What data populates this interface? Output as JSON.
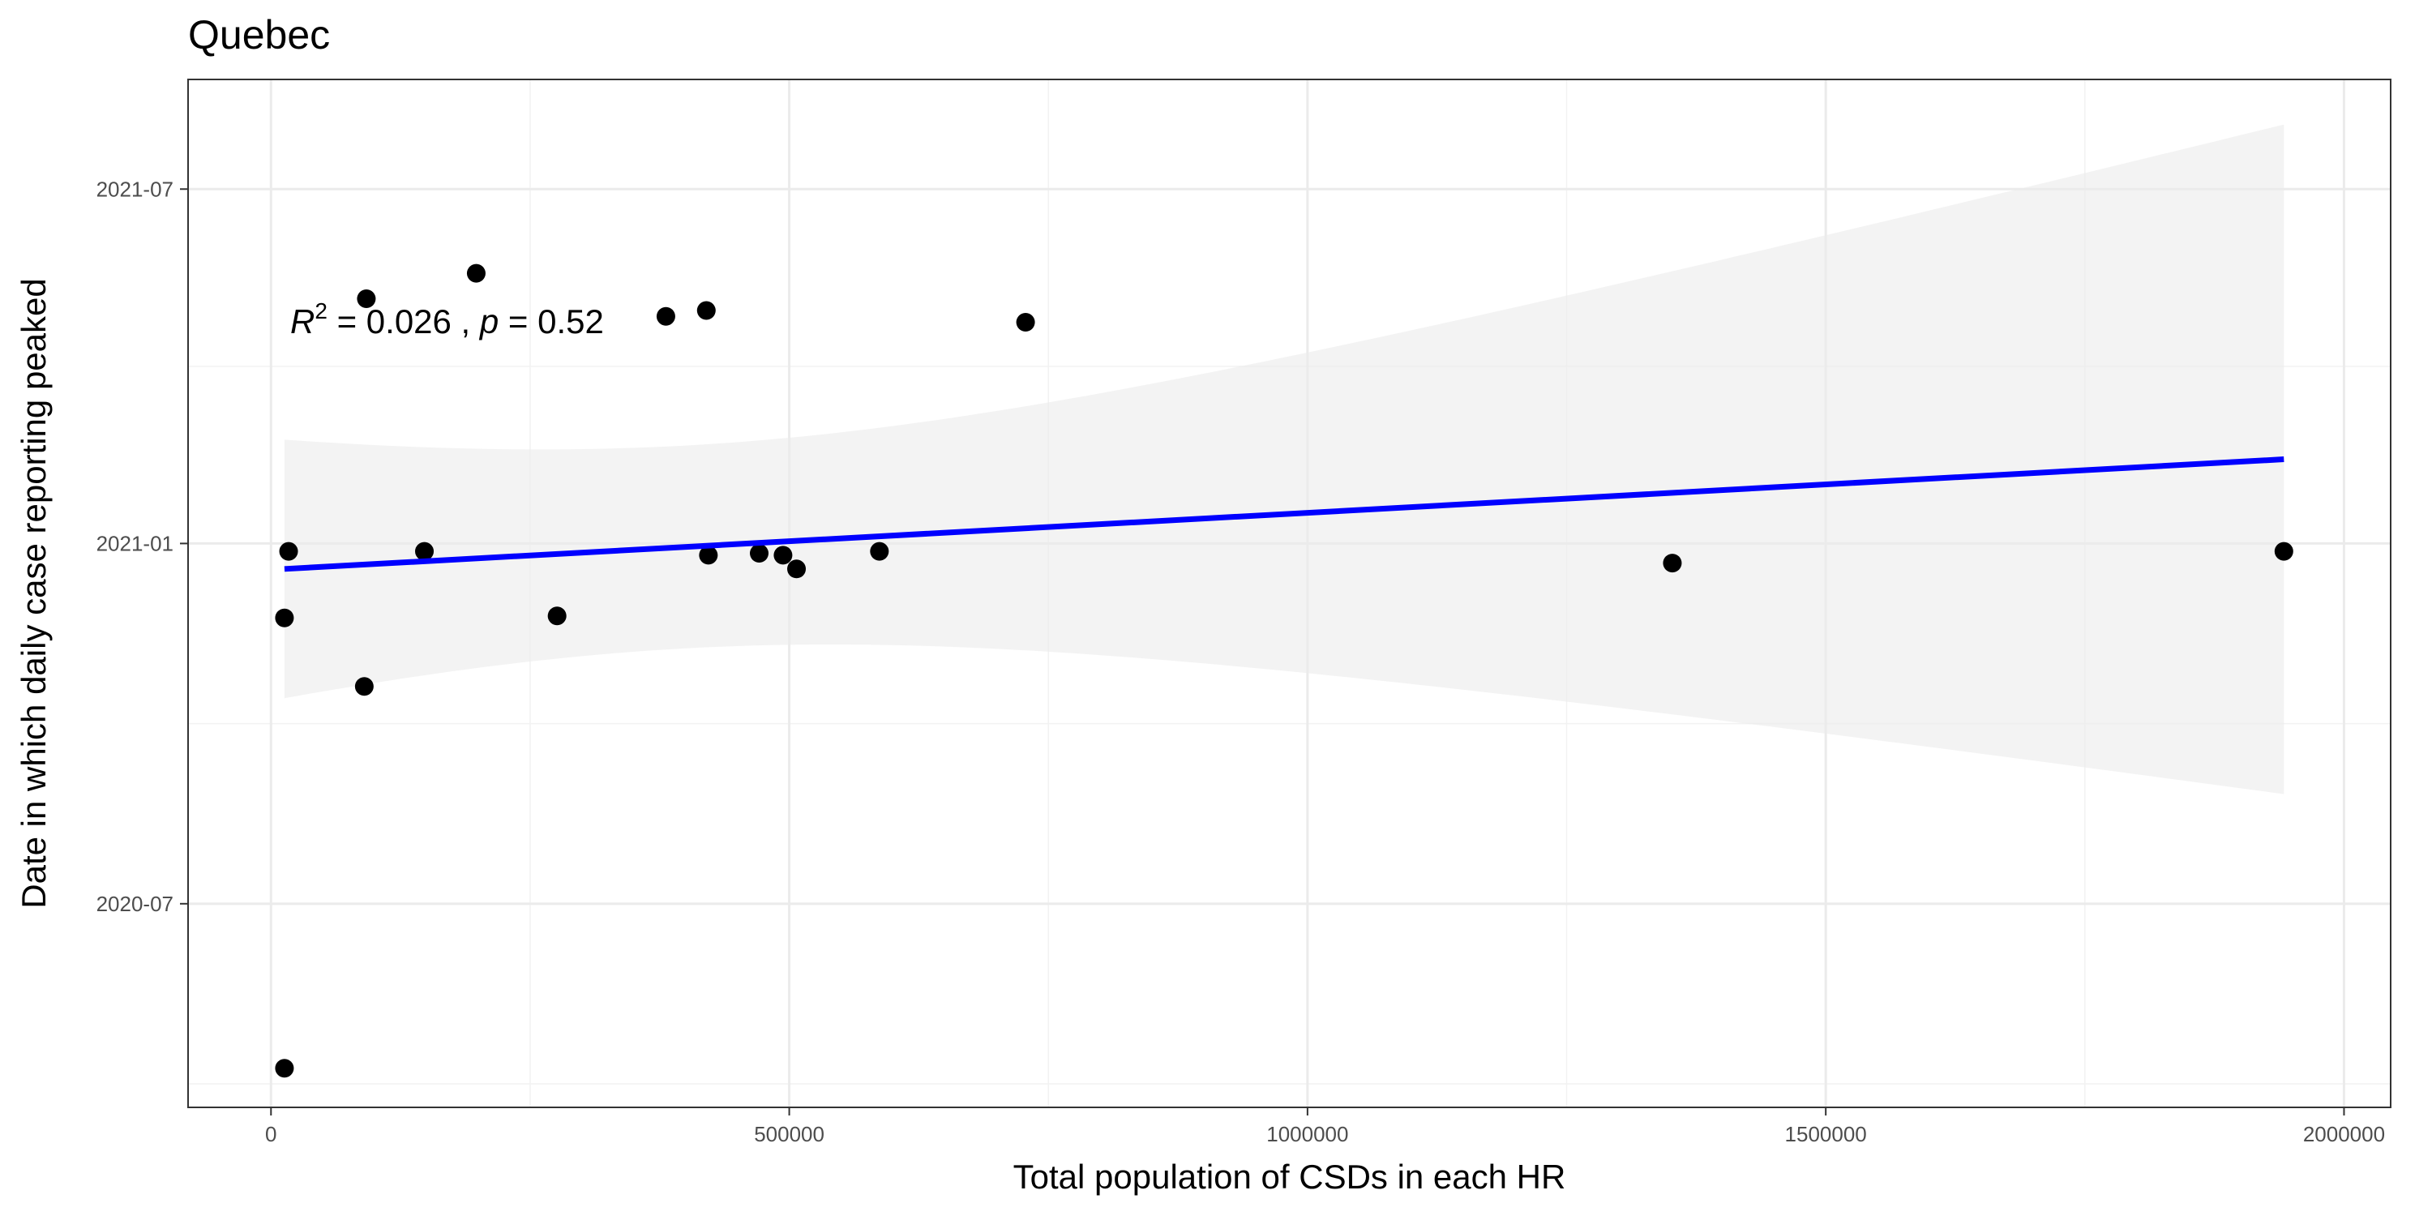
{
  "chart_data": {
    "type": "scatter",
    "title": "Quebec",
    "xlabel": "Total population of CSDs in each HR",
    "ylabel": "Date in which daily case reporting peaked",
    "xlim": [
      -80000,
      2045000
    ],
    "ylim": [
      "2020-03-19",
      "2021-08-26"
    ],
    "x_ticks": [
      0,
      500000,
      1000000,
      1500000,
      2000000
    ],
    "x_tick_labels": [
      "0",
      "500000",
      "1000000",
      "1500000",
      "2000000"
    ],
    "y_ticks": [
      "2020-07-01",
      "2021-01-01",
      "2021-07-01"
    ],
    "y_tick_labels": [
      "2020-07",
      "2021-01",
      "2021-07"
    ],
    "grid": true,
    "points": [
      {
        "x": 13000,
        "y": "2020-04-08"
      },
      {
        "x": 13000,
        "y": "2020-11-24"
      },
      {
        "x": 17000,
        "y": "2020-12-28"
      },
      {
        "x": 90000,
        "y": "2020-10-20"
      },
      {
        "x": 92000,
        "y": "2021-05-06"
      },
      {
        "x": 148000,
        "y": "2020-12-28"
      },
      {
        "x": 198000,
        "y": "2021-05-19"
      },
      {
        "x": 276000,
        "y": "2020-11-25"
      },
      {
        "x": 381000,
        "y": "2021-04-27"
      },
      {
        "x": 420000,
        "y": "2021-04-30"
      },
      {
        "x": 422000,
        "y": "2020-12-26"
      },
      {
        "x": 471000,
        "y": "2020-12-27"
      },
      {
        "x": 494000,
        "y": "2020-12-26"
      },
      {
        "x": 507000,
        "y": "2020-12-19"
      },
      {
        "x": 587000,
        "y": "2020-12-28"
      },
      {
        "x": 728000,
        "y": "2021-04-24"
      },
      {
        "x": 1352000,
        "y": "2020-12-22"
      },
      {
        "x": 1942000,
        "y": "2020-12-28"
      }
    ],
    "regression": {
      "x": [
        13000,
        1942000
      ],
      "y": [
        "2020-12-19",
        "2021-02-13"
      ],
      "band_upper": [
        "2021-02-23",
        "2021-08-03"
      ],
      "band_lower": [
        "2020-11-06",
        "2020-09-24"
      ],
      "line_color": "#0000ff",
      "band_color": "#ebebeb"
    },
    "annotation": {
      "r2_label": "R",
      "r2_superscript": "2",
      "r2_value": " = 0.026",
      "separator": " , ",
      "p_label": "p",
      "p_value": " = 0.52"
    },
    "point_color": "#000000"
  }
}
